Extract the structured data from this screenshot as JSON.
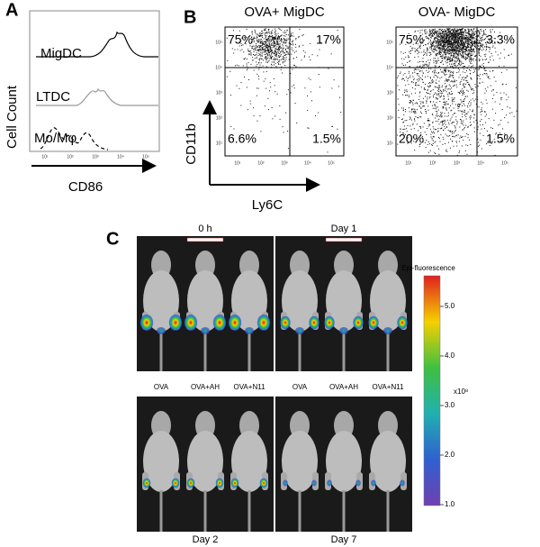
{
  "panel_a": {
    "label": "A",
    "y_axis": "Cell Count",
    "x_axis": "CD86",
    "histograms": [
      "MigDC",
      "LTDC",
      "Mo/Mφ"
    ],
    "ticks": [
      "10¹",
      "10²",
      "10³",
      "10⁴",
      "10⁵"
    ]
  },
  "panel_b": {
    "label": "B",
    "y_axis": "CD11b",
    "x_axis": "Ly6C",
    "ticks": [
      "10¹",
      "10²",
      "10³",
      "10⁴",
      "10⁵"
    ],
    "plots": [
      {
        "title": "OVA+ MigDC",
        "quadrants": [
          "75%",
          "17%",
          "6.6%",
          "1.5%"
        ]
      },
      {
        "title": "OVA- MigDC",
        "quadrants": [
          "75%",
          "3.3%",
          "20%",
          "1.5%"
        ]
      }
    ]
  },
  "panel_c": {
    "label": "C",
    "images": [
      {
        "label": "0 h"
      },
      {
        "label": "Day 1"
      },
      {
        "label": "Day 2"
      },
      {
        "label": "Day 7"
      }
    ],
    "groups": [
      "OVA",
      "OVA+AH",
      "OVA+N11"
    ],
    "colorbar": {
      "title": "Epi-fluorescence",
      "ticks": [
        "5.0",
        "4.0",
        "3.0",
        "2.0",
        "1.0"
      ],
      "unit": "x10⁸"
    }
  }
}
